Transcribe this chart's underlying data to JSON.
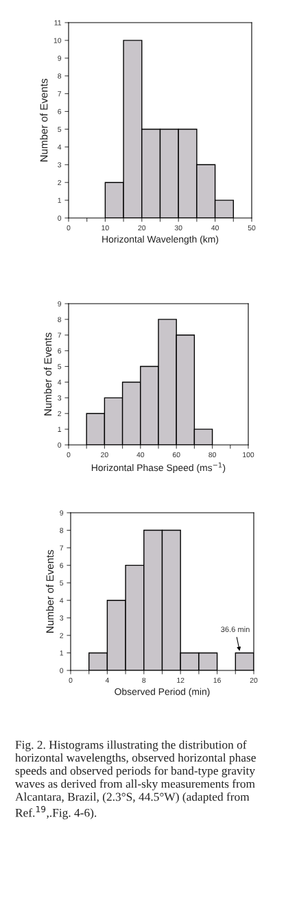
{
  "chart_data": [
    {
      "type": "histogram",
      "xlabel": "Horizontal Wavelength (km)",
      "ylabel": "Number of Events",
      "bins": [
        10,
        15,
        20,
        25,
        30,
        35,
        40,
        45
      ],
      "values": [
        2,
        10,
        5,
        5,
        5,
        3,
        1
      ],
      "color": "#c9c5ca",
      "xlim": [
        0,
        50
      ],
      "ylim": [
        0,
        11
      ],
      "xticks": [
        0,
        {
          "value": 5,
          "label": null
        },
        10,
        {
          "value": 15,
          "label": null
        },
        20,
        {
          "value": 25,
          "label": null
        },
        30,
        {
          "value": 35,
          "label": null
        },
        40,
        {
          "value": 45,
          "label": null
        },
        50
      ],
      "yticks": [
        0,
        1,
        2,
        3,
        4,
        5,
        6,
        7,
        8,
        9,
        10,
        11
      ],
      "grid": false,
      "legend": false
    },
    {
      "type": "histogram",
      "xlabel": "Horizontal Phase Speed (ms$^{−1}$)",
      "ylabel": "Number of Events",
      "bins": [
        10,
        20,
        30,
        40,
        50,
        60,
        70,
        80
      ],
      "values": [
        2,
        3,
        4,
        5,
        8,
        7,
        1
      ],
      "color": "#c9c5ca",
      "xlim": [
        0,
        100
      ],
      "ylim": [
        0,
        9
      ],
      "xticks": [
        0,
        {
          "value": 10,
          "label": null
        },
        20,
        {
          "value": 30,
          "label": null
        },
        40,
        {
          "value": 50,
          "label": null
        },
        60,
        {
          "value": 70,
          "label": null
        },
        80,
        {
          "value": 90,
          "label": null
        },
        100
      ],
      "yticks": [
        0,
        1,
        2,
        3,
        4,
        5,
        6,
        7,
        8,
        9
      ],
      "grid": false,
      "legend": false
    },
    {
      "type": "histogram",
      "xlabel": "Observed Period (min)",
      "ylabel": "Number of Events",
      "bins": [
        2,
        4,
        6,
        8,
        10,
        12,
        14,
        16,
        18,
        20
      ],
      "values": [
        1,
        4,
        6,
        8,
        8,
        1,
        1,
        0,
        1
      ],
      "color": "#c9c5ca",
      "xlim": [
        0,
        20
      ],
      "ylim": [
        0,
        9
      ],
      "xticks": [
        0,
        {
          "value": 2,
          "label": null
        },
        4,
        {
          "value": 6,
          "label": null
        },
        8,
        {
          "value": 10,
          "label": null
        },
        12,
        {
          "value": 14,
          "label": null
        },
        16,
        {
          "value": 18,
          "label": null
        },
        20
      ],
      "yticks": [
        0,
        1,
        2,
        3,
        4,
        5,
        6,
        7,
        8,
        9
      ],
      "grid": false,
      "legend": false,
      "annotations": [
        {
          "text": "36.6 min",
          "x": 18.5,
          "y": 1
        },
        "Fig. 2. Histograms illustrating the distribution of horizontal wavelengths, observed horizontal phase speeds and observed periods for band-type gravity waves as derived from all-sky measurements from Alcantara, Brazil, (2.3°S, 44.5°W) (adapted from Ref.$^{19}$,.Fig. 4-6)."
      ]
    }
  ]
}
